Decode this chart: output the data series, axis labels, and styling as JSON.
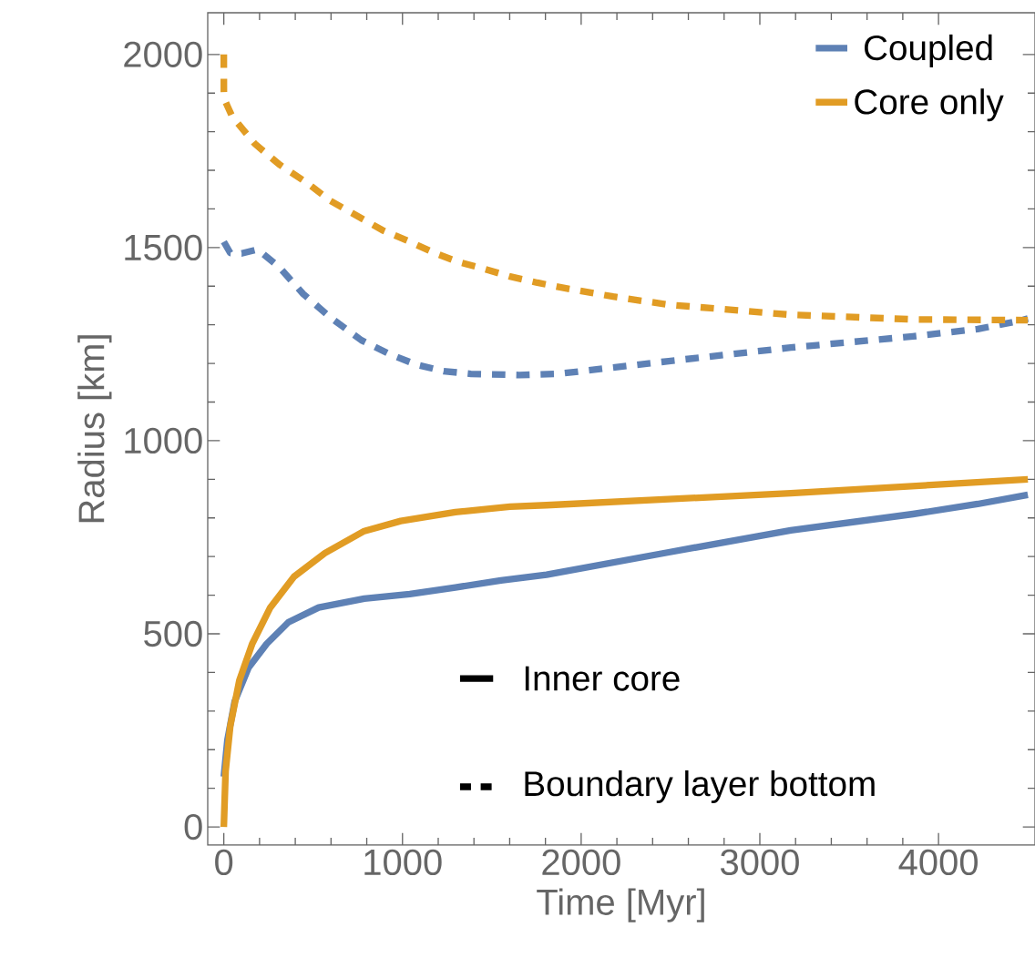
{
  "chart_data": {
    "type": "line",
    "xlabel": "Time [Myr]",
    "ylabel": "Radius [km]",
    "xlim": [
      -90,
      4540
    ],
    "ylim": [
      -47,
      2108
    ],
    "xticks": [
      0,
      1000,
      2000,
      3000,
      4000
    ],
    "yticks": [
      0,
      500,
      1000,
      1500,
      2000
    ],
    "legend": "top right",
    "grid": false,
    "annotations": [
      "Inner core",
      "Boundary layer bottom"
    ],
    "series": [
      {
        "name": "Coupled",
        "color": "#5e81b5",
        "line_style": "solid",
        "x": [
          0,
          20,
          61,
          138,
          240,
          362,
          531,
          786,
          1041,
          1296,
          1551,
          1806,
          2490,
          3173,
          3857,
          4219,
          4500
        ],
        "values": [
          130,
          224,
          325,
          412,
          474,
          530,
          568,
          591,
          603,
          620,
          638,
          653,
          711,
          768,
          810,
          836,
          860
        ]
      },
      {
        "name": "Core only",
        "color": "#e19c24",
        "line_style": "solid",
        "x": [
          0,
          10,
          36,
          87,
          158,
          260,
          393,
          566,
          786,
          990,
          1296,
          1602,
          1806,
          3173,
          4500
        ],
        "values": [
          0,
          144,
          261,
          379,
          473,
          568,
          648,
          709,
          766,
          792,
          815,
          829,
          833,
          864,
          900
        ]
      },
      {
        "color": "#5e81b5",
        "line_style": "dashed",
        "x": [
          0,
          36,
          100,
          190,
          311,
          444,
          597,
          770,
          923,
          1077,
          1230,
          1383,
          1653,
          1872,
          2490,
          3173,
          3857,
          4219,
          4450,
          4500
        ],
        "values": [
          1515,
          1486,
          1485,
          1495,
          1449,
          1380,
          1319,
          1260,
          1225,
          1197,
          1180,
          1173,
          1170,
          1173,
          1206,
          1241,
          1270,
          1289,
          1310,
          1316
        ]
      },
      {
        "color": "#e19c24",
        "line_style": "dashed",
        "x": [
          0,
          0.5,
          46,
          173,
          311,
          464,
          597,
          750,
          888,
          1041,
          1179,
          1311,
          1464,
          1602,
          1755,
          1908,
          2179,
          2490,
          3173,
          3857,
          4500
        ],
        "values": [
          2000,
          1887,
          1840,
          1769,
          1715,
          1668,
          1621,
          1581,
          1545,
          1515,
          1486,
          1463,
          1444,
          1425,
          1409,
          1395,
          1373,
          1352,
          1326,
          1314,
          1312
        ]
      }
    ]
  }
}
